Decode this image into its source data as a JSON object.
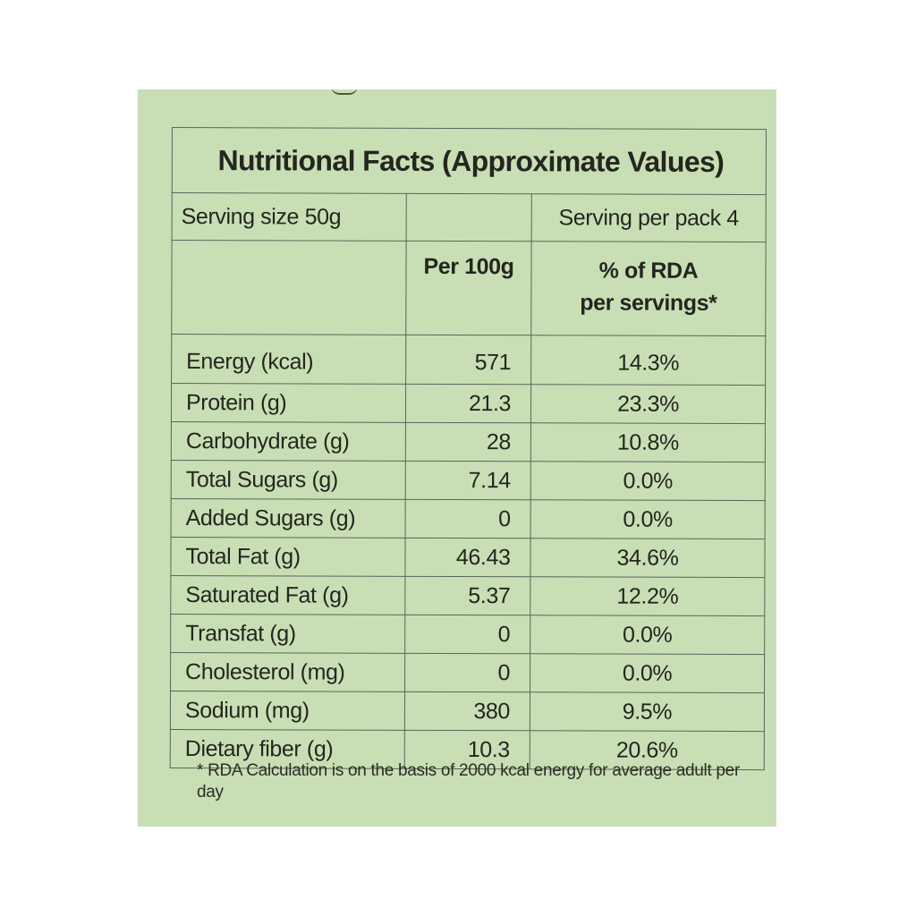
{
  "label": {
    "title": "Nutritional Facts (Approximate Values)",
    "serving_size": "Serving size 50g",
    "serving_per_pack": "Serving per pack 4",
    "col_per_100g": "Per 100g",
    "col_rda_line1": "% of RDA",
    "col_rda_line2": "per servings*",
    "rows": [
      {
        "name": "Energy (kcal)",
        "per_100g": "571",
        "rda": "14.3%"
      },
      {
        "name": "Protein (g)",
        "per_100g": "21.3",
        "rda": "23.3%"
      },
      {
        "name": "Carbohydrate (g)",
        "per_100g": "28",
        "rda": "10.8%"
      },
      {
        "name": "Total Sugars (g)",
        "per_100g": "7.14",
        "rda": "0.0%"
      },
      {
        "name": "Added Sugars (g)",
        "per_100g": "0",
        "rda": "0.0%"
      },
      {
        "name": "Total Fat (g)",
        "per_100g": "46.43",
        "rda": "34.6%"
      },
      {
        "name": "Saturated Fat (g)",
        "per_100g": "5.37",
        "rda": "12.2%"
      },
      {
        "name": "Transfat (g)",
        "per_100g": "0",
        "rda": "0.0%"
      },
      {
        "name": "Cholesterol (mg)",
        "per_100g": "0",
        "rda": "0.0%"
      },
      {
        "name": "Sodium (mg)",
        "per_100g": "380",
        "rda": "9.5%"
      },
      {
        "name": "Dietary fiber (g)",
        "per_100g": "10.3",
        "rda": "20.6%"
      }
    ],
    "footnote": "* RDA Calculation is on the basis of 2000 kcal energy for average adult per day"
  },
  "colors": {
    "panel_background": "#c8dfb5",
    "table_lines": "#56675a",
    "text": "#24261f"
  }
}
